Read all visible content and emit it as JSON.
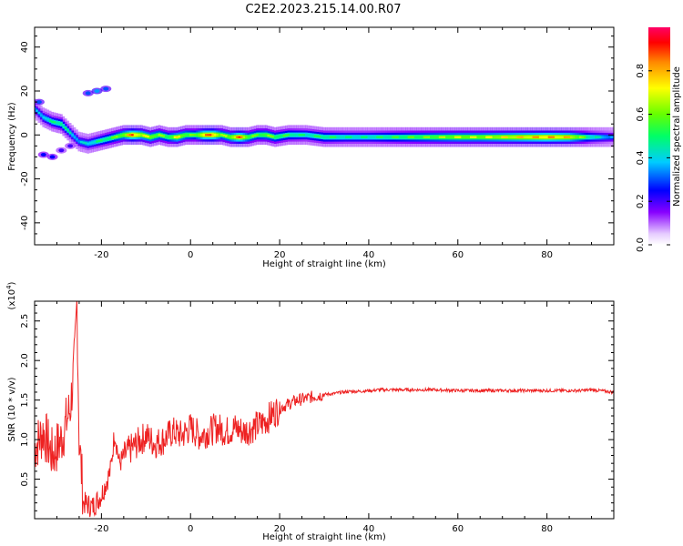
{
  "title": "C2E2.2023.215.14.00.R07",
  "chart_data": [
    {
      "type": "heatmap",
      "xlabel": "Height of straight line (km)",
      "ylabel": "Frequency (Hz)",
      "xlim": [
        -35,
        95
      ],
      "ylim": [
        -50,
        49
      ],
      "xticks": [
        -20,
        0,
        20,
        40,
        60,
        80
      ],
      "yticks": [
        -40,
        -20,
        0,
        20,
        40
      ],
      "grid": false,
      "colorbar": {
        "label": "Normalized spectral amplitude",
        "range": [
          0,
          1
        ],
        "ticks": [
          0.0,
          0.2,
          0.4,
          0.6,
          0.8
        ],
        "colormap": [
          "#ffffff",
          "#e6ccff",
          "#8800ff",
          "#0000ff",
          "#00ccff",
          "#00ff66",
          "#66ff00",
          "#ffff00",
          "#ff8800",
          "#ff0000",
          "#ff0066"
        ]
      },
      "ridge": [
        {
          "x": -35,
          "y": 12,
          "a": 0.35
        },
        {
          "x": -33,
          "y": 8,
          "a": 0.45
        },
        {
          "x": -31,
          "y": 6,
          "a": 0.5
        },
        {
          "x": -29,
          "y": 5,
          "a": 0.55
        },
        {
          "x": -27,
          "y": 1,
          "a": 0.45
        },
        {
          "x": -25,
          "y": -3,
          "a": 0.4
        },
        {
          "x": -23,
          "y": -4,
          "a": 0.45
        },
        {
          "x": -21,
          "y": -3,
          "a": 0.5
        },
        {
          "x": -19,
          "y": -2,
          "a": 0.55
        },
        {
          "x": -17,
          "y": -1,
          "a": 0.6
        },
        {
          "x": -15,
          "y": 0,
          "a": 0.7
        },
        {
          "x": -13,
          "y": 0,
          "a": 0.9
        },
        {
          "x": -11,
          "y": 0,
          "a": 0.75
        },
        {
          "x": -9,
          "y": -1,
          "a": 0.7
        },
        {
          "x": -7,
          "y": 0,
          "a": 0.65
        },
        {
          "x": -5,
          "y": -1,
          "a": 0.6
        },
        {
          "x": -3,
          "y": -1,
          "a": 0.75
        },
        {
          "x": -1,
          "y": 0,
          "a": 0.65
        },
        {
          "x": 1,
          "y": 0,
          "a": 0.6
        },
        {
          "x": 3,
          "y": 0,
          "a": 0.85
        },
        {
          "x": 5,
          "y": 0,
          "a": 0.9
        },
        {
          "x": 7,
          "y": 0,
          "a": 0.65
        },
        {
          "x": 9,
          "y": -1,
          "a": 0.7
        },
        {
          "x": 11,
          "y": -1,
          "a": 0.9
        },
        {
          "x": 13,
          "y": -1,
          "a": 0.65
        },
        {
          "x": 15,
          "y": 0,
          "a": 0.6
        },
        {
          "x": 17,
          "y": 0,
          "a": 0.65
        },
        {
          "x": 19,
          "y": -1,
          "a": 0.6
        },
        {
          "x": 22,
          "y": 0,
          "a": 0.55
        },
        {
          "x": 26,
          "y": 0,
          "a": 0.5
        },
        {
          "x": 30,
          "y": -1,
          "a": 0.55
        },
        {
          "x": 35,
          "y": -1,
          "a": 0.5
        },
        {
          "x": 40,
          "y": -1,
          "a": 0.5
        },
        {
          "x": 45,
          "y": -1,
          "a": 0.55
        },
        {
          "x": 50,
          "y": -1,
          "a": 0.6
        },
        {
          "x": 55,
          "y": -1,
          "a": 0.65
        },
        {
          "x": 60,
          "y": -1,
          "a": 0.7
        },
        {
          "x": 65,
          "y": -1,
          "a": 0.7
        },
        {
          "x": 70,
          "y": -1,
          "a": 0.75
        },
        {
          "x": 75,
          "y": -1,
          "a": 0.8
        },
        {
          "x": 80,
          "y": -1,
          "a": 0.85
        },
        {
          "x": 85,
          "y": -1,
          "a": 0.8
        },
        {
          "x": 90,
          "y": -1,
          "a": 0.5
        },
        {
          "x": 95,
          "y": -1,
          "a": 0.35
        }
      ],
      "features": [
        {
          "x": -23,
          "y": 19,
          "a": 0.3
        },
        {
          "x": -21,
          "y": 20,
          "a": 0.35
        },
        {
          "x": -19,
          "y": 21,
          "a": 0.3
        },
        {
          "x": -33,
          "y": -9,
          "a": 0.25
        },
        {
          "x": -31,
          "y": -10,
          "a": 0.25
        },
        {
          "x": -29,
          "y": -7,
          "a": 0.2
        },
        {
          "x": -27,
          "y": -5,
          "a": 0.2
        },
        {
          "x": -34,
          "y": 15,
          "a": 0.3
        }
      ]
    },
    {
      "type": "line",
      "xlabel": "Height of straight line (km)",
      "ylabel": "SNR (10 * v/v)",
      "y_multiplier": "(x10^4)",
      "xlim": [
        -35,
        95
      ],
      "ylim": [
        0.0,
        2.75
      ],
      "xticks": [
        -20,
        0,
        20,
        40,
        60,
        80
      ],
      "yticks": [
        0.5,
        1.0,
        1.5,
        2.0,
        2.5
      ],
      "grid": false,
      "color": "#ee2222",
      "series": [
        {
          "x": [
            -35,
            -33,
            -31,
            -29,
            -27,
            -26,
            -25.5,
            -25,
            -24,
            -22,
            -20,
            -18,
            -17,
            -16,
            -14,
            -12,
            -10,
            -8,
            -6,
            -4,
            -2,
            0,
            2,
            4,
            6,
            8,
            10,
            12,
            14,
            16,
            18,
            20,
            22,
            24,
            26,
            28,
            30,
            32,
            34,
            36,
            38,
            40,
            41,
            42,
            45,
            50,
            55,
            60,
            63,
            65,
            70,
            75,
            80,
            85,
            88,
            90,
            95
          ],
          "y": [
            0.9,
            1.1,
            0.8,
            1.0,
            1.4,
            2.0,
            2.75,
            1.0,
            0.2,
            0.15,
            0.3,
            0.6,
            1.1,
            0.7,
            0.85,
            0.95,
            1.05,
            0.95,
            1.0,
            1.1,
            1.05,
            1.15,
            1.05,
            1.1,
            1.15,
            1.1,
            1.15,
            1.1,
            1.15,
            1.2,
            1.3,
            1.4,
            1.45,
            1.5,
            1.52,
            1.55,
            1.57,
            1.58,
            1.6,
            1.61,
            1.61,
            1.62,
            1.62,
            1.63,
            1.63,
            1.63,
            1.63,
            1.62,
            1.62,
            1.62,
            1.62,
            1.62,
            1.62,
            1.62,
            1.62,
            1.63,
            1.6
          ]
        }
      ]
    }
  ]
}
